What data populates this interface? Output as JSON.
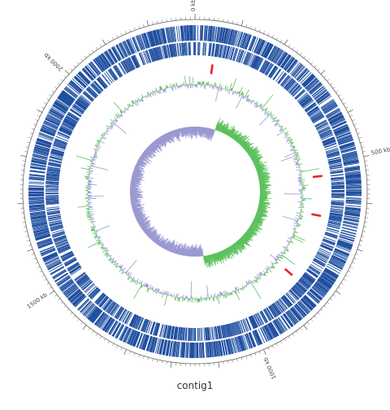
{
  "caption": "contig1",
  "genome_length_kb": 2300,
  "major_labels": [
    {
      "kb": 0,
      "text": "0 kb"
    },
    {
      "kb": 500,
      "text": "500 kb"
    },
    {
      "kb": 1000,
      "text": "1000 kb"
    },
    {
      "kb": 1500,
      "text": "1500 kb"
    },
    {
      "kb": 2000,
      "text": "2000 kb"
    }
  ],
  "colors": {
    "cds": "#1f4fa0",
    "gc_above": "#5cc15c",
    "gc_below": "#9a9ad2",
    "skew_above": "#5cc15c",
    "skew_below": "#9a9ad2",
    "marker": "#e0242b",
    "ruler": "#666666"
  },
  "red_markers_kb": [
    50,
    530,
    645,
    835
  ],
  "tracks": [
    "ruler",
    "cds-outer",
    "cds-inner",
    "gc-content",
    "gc-skew"
  ]
}
